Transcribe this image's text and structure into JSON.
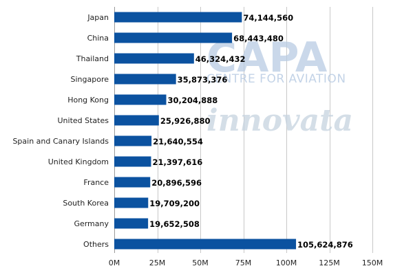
{
  "chart_data": {
    "type": "bar",
    "orientation": "horizontal",
    "categories": [
      "Japan",
      "China",
      "Thailand",
      "Singapore",
      "Hong Kong",
      "United States",
      "Spain and Canary Islands",
      "United Kingdom",
      "France",
      "South Korea",
      "Germany",
      "Others"
    ],
    "values": [
      74144560,
      68443480,
      46324432,
      35873376,
      30204888,
      25926880,
      21640554,
      21397616,
      20896596,
      19709200,
      19652508,
      105624876
    ],
    "value_labels": [
      "74,144,560",
      "68,443,480",
      "46,324,432",
      "35,873,376",
      "30,204,888",
      "25,926,880",
      "21,640,554",
      "21,397,616",
      "20,896,596",
      "19,709,200",
      "19,652,508",
      "105,624,876"
    ],
    "xlim": [
      0,
      150000000
    ],
    "ticks": [
      0,
      25000000,
      50000000,
      75000000,
      100000000,
      125000000,
      150000000
    ],
    "tick_labels": [
      "0M",
      "25M",
      "50M",
      "75M",
      "100M",
      "125M",
      "150M"
    ],
    "grid": true,
    "bar_color": "#0b52a0",
    "grid_color": "#c8c8c8",
    "title": "",
    "xlabel": "",
    "ylabel": ""
  },
  "watermarks": {
    "capa": "CAPA",
    "capa_sub": "CENTRE FOR AVIATION",
    "innovata": "innovata"
  }
}
